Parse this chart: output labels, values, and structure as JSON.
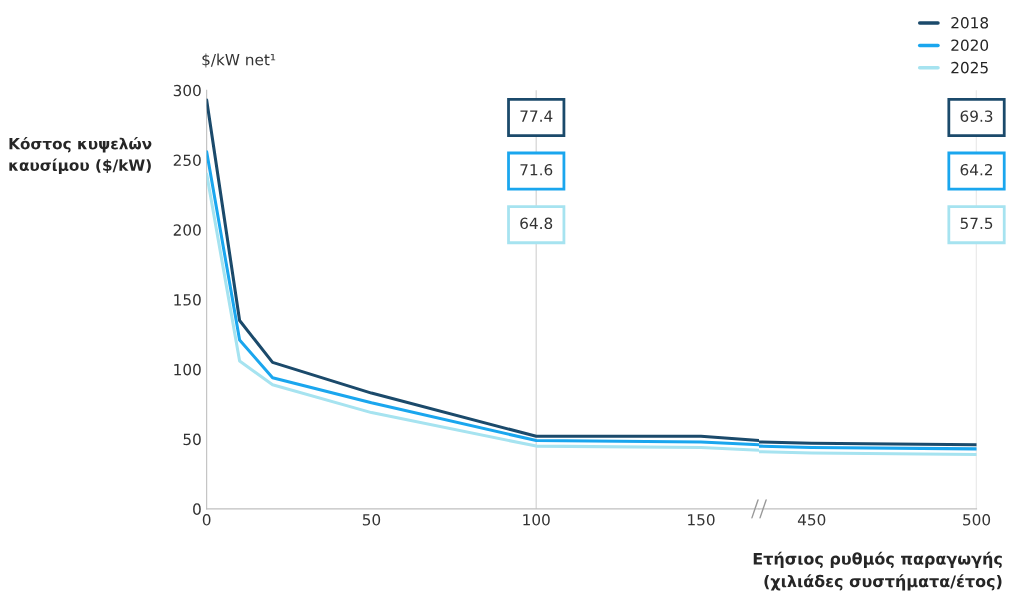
{
  "chart_data": [
    {
      "type": "line",
      "title": "Κόστος κυψελών καυσίμου ($/kW)",
      "ylabel": "$/kW net¹",
      "xlim": [
        0,
        167.6
      ],
      "xticks": [
        0,
        50,
        100,
        150
      ],
      "ylim": [
        0,
        300
      ],
      "yticks": [
        0,
        50,
        100,
        150,
        200,
        250,
        300
      ],
      "grid": false,
      "legend": "top right",
      "series": [
        {
          "name": "2018",
          "color": "#1b4a6b",
          "x": [
            0,
            10,
            20,
            50,
            100,
            150,
            167.6
          ],
          "values": [
            293,
            135,
            105,
            83,
            52,
            52,
            49
          ]
        },
        {
          "name": "2020",
          "color": "#1aa6ee",
          "x": [
            0,
            10,
            20,
            50,
            100,
            150,
            167.6
          ],
          "values": [
            256,
            121,
            94,
            76,
            49,
            48,
            46
          ]
        },
        {
          "name": "2025",
          "color": "#a6e3f0",
          "x": [
            0,
            10,
            20,
            50,
            100,
            150,
            167.6
          ],
          "values": [
            240,
            106,
            89,
            69,
            45,
            44,
            42
          ]
        }
      ],
      "ref_lines": [
        {
          "axis": "x",
          "value": 100,
          "color": "#d9d9d9"
        }
      ],
      "annotations": [
        "77.4",
        "71.6",
        "64.8"
      ]
    },
    {
      "type": "line",
      "xlabel": "Ετήσιος ρυθμός παραγωγής\n(χιλιάδες συστήματα/έτος)",
      "xlim": [
        434,
        500
      ],
      "xticks": [
        450,
        500
      ],
      "ylim": [
        0,
        300
      ],
      "tick_labels": "x",
      "grid": false,
      "series": [
        {
          "color": "#1b4a6b",
          "x": [
            434,
            450,
            500
          ],
          "values": [
            48,
            47,
            46
          ]
        },
        {
          "color": "#1aa6ee",
          "x": [
            434,
            450,
            500
          ],
          "values": [
            45,
            44,
            43
          ]
        },
        {
          "color": "#a6e3f0",
          "x": [
            434,
            450,
            500
          ],
          "values": [
            41,
            40,
            39
          ]
        }
      ],
      "ref_lines": [
        {
          "axis": "x",
          "value": 500,
          "color": "#d9d9d9"
        }
      ],
      "annotations": [
        "69.3",
        "64.2",
        "57.5"
      ]
    }
  ]
}
